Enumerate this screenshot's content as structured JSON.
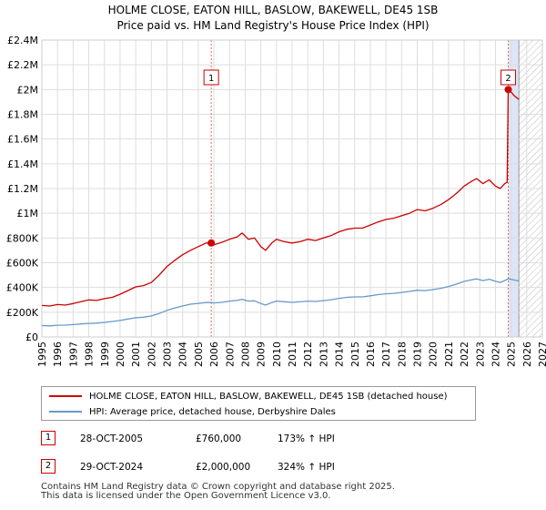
{
  "header": {
    "title_line1": "HOLME CLOSE, EATON HILL, BASLOW, BAKEWELL, DE45 1SB",
    "title_line2": "Price paid vs. HM Land Registry's House Price Index (HPI)"
  },
  "chart_data": {
    "type": "line",
    "xlim": [
      1995,
      2027
    ],
    "ylim": [
      0,
      2400000
    ],
    "x_ticks": [
      1995,
      1996,
      1997,
      1998,
      1999,
      2000,
      2001,
      2002,
      2003,
      2004,
      2005,
      2006,
      2007,
      2008,
      2009,
      2010,
      2011,
      2012,
      2013,
      2014,
      2015,
      2016,
      2017,
      2018,
      2019,
      2020,
      2021,
      2022,
      2023,
      2024,
      2025,
      2026,
      2027
    ],
    "y_ticks": [
      {
        "value": 0,
        "label": "£0"
      },
      {
        "value": 200000,
        "label": "£200K"
      },
      {
        "value": 400000,
        "label": "£400K"
      },
      {
        "value": 600000,
        "label": "£600K"
      },
      {
        "value": 800000,
        "label": "£800K"
      },
      {
        "value": 1000000,
        "label": "£1M"
      },
      {
        "value": 1200000,
        "label": "£1.2M"
      },
      {
        "value": 1400000,
        "label": "£1.4M"
      },
      {
        "value": 1600000,
        "label": "£1.6M"
      },
      {
        "value": 1800000,
        "label": "£1.8M"
      },
      {
        "value": 2000000,
        "label": "£2M"
      },
      {
        "value": 2200000,
        "label": "£2.2M"
      },
      {
        "value": 2400000,
        "label": "£2.4M"
      }
    ],
    "grid": true,
    "hatched_future_from": 2025.5,
    "colors": {
      "property": "#cc0000",
      "hpi": "#6699cc",
      "highlight": "#dde6f7",
      "grid": "#dddddd"
    },
    "series": [
      {
        "name": "HOLME CLOSE, EATON HILL, BASLOW, BAKEWELL, DE45 1SB (detached house)",
        "color": "#cc0000",
        "points": [
          [
            1995.0,
            255000
          ],
          [
            1995.5,
            250000
          ],
          [
            1996.0,
            262000
          ],
          [
            1996.5,
            258000
          ],
          [
            1997.0,
            270000
          ],
          [
            1997.5,
            285000
          ],
          [
            1998.0,
            300000
          ],
          [
            1998.5,
            295000
          ],
          [
            1999.0,
            310000
          ],
          [
            1999.5,
            320000
          ],
          [
            2000.0,
            345000
          ],
          [
            2000.5,
            375000
          ],
          [
            2001.0,
            405000
          ],
          [
            2001.5,
            415000
          ],
          [
            2002.0,
            440000
          ],
          [
            2002.5,
            500000
          ],
          [
            2003.0,
            570000
          ],
          [
            2003.5,
            620000
          ],
          [
            2004.0,
            665000
          ],
          [
            2004.5,
            700000
          ],
          [
            2005.0,
            730000
          ],
          [
            2005.5,
            760000
          ],
          [
            2005.83,
            760000
          ],
          [
            2006.0,
            745000
          ],
          [
            2006.5,
            765000
          ],
          [
            2007.0,
            790000
          ],
          [
            2007.5,
            810000
          ],
          [
            2007.8,
            840000
          ],
          [
            2008.2,
            790000
          ],
          [
            2008.6,
            800000
          ],
          [
            2009.0,
            730000
          ],
          [
            2009.3,
            700000
          ],
          [
            2009.7,
            760000
          ],
          [
            2010.0,
            790000
          ],
          [
            2010.5,
            770000
          ],
          [
            2011.0,
            760000
          ],
          [
            2011.5,
            770000
          ],
          [
            2012.0,
            790000
          ],
          [
            2012.5,
            780000
          ],
          [
            2013.0,
            800000
          ],
          [
            2013.5,
            820000
          ],
          [
            2014.0,
            850000
          ],
          [
            2014.5,
            870000
          ],
          [
            2015.0,
            880000
          ],
          [
            2015.5,
            880000
          ],
          [
            2016.0,
            905000
          ],
          [
            2016.5,
            930000
          ],
          [
            2017.0,
            950000
          ],
          [
            2017.5,
            960000
          ],
          [
            2018.0,
            980000
          ],
          [
            2018.5,
            1000000
          ],
          [
            2019.0,
            1030000
          ],
          [
            2019.5,
            1020000
          ],
          [
            2020.0,
            1040000
          ],
          [
            2020.5,
            1070000
          ],
          [
            2021.0,
            1110000
          ],
          [
            2021.5,
            1160000
          ],
          [
            2022.0,
            1220000
          ],
          [
            2022.5,
            1260000
          ],
          [
            2022.8,
            1280000
          ],
          [
            2023.2,
            1240000
          ],
          [
            2023.6,
            1270000
          ],
          [
            2024.0,
            1220000
          ],
          [
            2024.3,
            1200000
          ],
          [
            2024.6,
            1240000
          ],
          [
            2024.75,
            1250000
          ],
          [
            2024.82,
            2000000
          ],
          [
            2025.0,
            1980000
          ],
          [
            2025.2,
            1950000
          ],
          [
            2025.5,
            1920000
          ]
        ]
      },
      {
        "name": "HPI: Average price, detached house, Derbyshire Dales",
        "color": "#6699cc",
        "points": [
          [
            1995.0,
            92000
          ],
          [
            1995.5,
            90000
          ],
          [
            1996.0,
            95000
          ],
          [
            1996.5,
            96000
          ],
          [
            1997.0,
            100000
          ],
          [
            1997.5,
            105000
          ],
          [
            1998.0,
            110000
          ],
          [
            1998.5,
            112000
          ],
          [
            1999.0,
            118000
          ],
          [
            1999.5,
            125000
          ],
          [
            2000.0,
            133000
          ],
          [
            2000.5,
            145000
          ],
          [
            2001.0,
            155000
          ],
          [
            2001.5,
            160000
          ],
          [
            2002.0,
            170000
          ],
          [
            2002.5,
            190000
          ],
          [
            2003.0,
            215000
          ],
          [
            2003.5,
            235000
          ],
          [
            2004.0,
            250000
          ],
          [
            2004.5,
            265000
          ],
          [
            2005.0,
            272000
          ],
          [
            2005.5,
            278000
          ],
          [
            2005.83,
            278000
          ],
          [
            2006.0,
            275000
          ],
          [
            2006.5,
            280000
          ],
          [
            2007.0,
            290000
          ],
          [
            2007.5,
            295000
          ],
          [
            2007.8,
            305000
          ],
          [
            2008.2,
            290000
          ],
          [
            2008.6,
            292000
          ],
          [
            2009.0,
            270000
          ],
          [
            2009.3,
            258000
          ],
          [
            2009.7,
            278000
          ],
          [
            2010.0,
            290000
          ],
          [
            2010.5,
            285000
          ],
          [
            2011.0,
            280000
          ],
          [
            2011.5,
            284000
          ],
          [
            2012.0,
            290000
          ],
          [
            2012.5,
            287000
          ],
          [
            2013.0,
            294000
          ],
          [
            2013.5,
            301000
          ],
          [
            2014.0,
            312000
          ],
          [
            2014.5,
            320000
          ],
          [
            2015.0,
            324000
          ],
          [
            2015.5,
            324000
          ],
          [
            2016.0,
            333000
          ],
          [
            2016.5,
            342000
          ],
          [
            2017.0,
            349000
          ],
          [
            2017.5,
            353000
          ],
          [
            2018.0,
            360000
          ],
          [
            2018.5,
            368000
          ],
          [
            2019.0,
            378000
          ],
          [
            2019.5,
            375000
          ],
          [
            2020.0,
            383000
          ],
          [
            2020.5,
            393000
          ],
          [
            2021.0,
            408000
          ],
          [
            2021.5,
            427000
          ],
          [
            2022.0,
            449000
          ],
          [
            2022.5,
            463000
          ],
          [
            2022.8,
            470000
          ],
          [
            2023.2,
            456000
          ],
          [
            2023.6,
            467000
          ],
          [
            2024.0,
            450000
          ],
          [
            2024.3,
            441000
          ],
          [
            2024.6,
            456000
          ],
          [
            2024.82,
            472000
          ],
          [
            2025.0,
            467000
          ],
          [
            2025.2,
            460000
          ],
          [
            2025.5,
            453000
          ]
        ]
      }
    ],
    "sales": [
      {
        "label": "1",
        "x": 2005.83,
        "y": 760000
      },
      {
        "label": "2",
        "x": 2024.82,
        "y": 2000000
      }
    ]
  },
  "legend": {
    "property_label": "HOLME CLOSE, EATON HILL, BASLOW, BAKEWELL, DE45 1SB (detached house)",
    "hpi_label": "HPI: Average price, detached house, Derbyshire Dales"
  },
  "transactions": [
    {
      "num": "1",
      "date": "28-OCT-2005",
      "price": "£760,000",
      "hpi": "173% ↑ HPI"
    },
    {
      "num": "2",
      "date": "29-OCT-2024",
      "price": "£2,000,000",
      "hpi": "324% ↑ HPI"
    }
  ],
  "footer": {
    "line1": "Contains HM Land Registry data © Crown copyright and database right 2025.",
    "line2": "This data is licensed under the Open Government Licence v3.0."
  }
}
